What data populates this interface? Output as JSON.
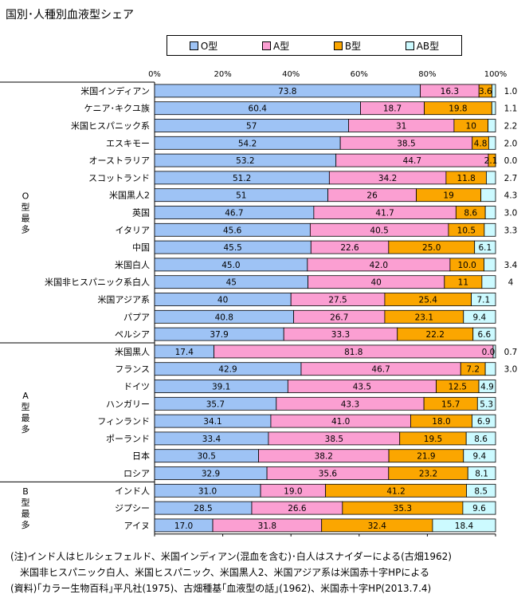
{
  "title": "国別･人種別血液型シェア",
  "notes": [
    "(注)インド人はヒルシェフェルド、米国インディアン(混血を含む)･白人はスナイダーによる(古畑1962)",
    "　米国非ヒスパニック白人、米国ヒスパニック、米国黒人2、米国アジア系は米国赤十字HPによる",
    "(資料)｢カラー生物百科｣平凡社(1975)、古畑種基｢血液型の話｣(1962)、米国赤十字HP(2013.7.4)"
  ],
  "colors": {
    "O": "#9ec3f5",
    "A": "#fb9fd2",
    "B": "#fba600",
    "AB": "#ccfaff"
  },
  "chart_data": {
    "type": "bar",
    "orientation": "horizontal",
    "stacked": true,
    "xlim": [
      0,
      100
    ],
    "xticks": [
      "0%",
      "20%",
      "40%",
      "60%",
      "80%",
      "100%"
    ],
    "legend": {
      "position": "top",
      "entries": [
        "O型",
        "A型",
        "B型",
        "AB型"
      ]
    },
    "groups": [
      {
        "label": "O型最多",
        "start": 0,
        "end": 14
      },
      {
        "label": "A型最多",
        "start": 15,
        "end": 22
      },
      {
        "label": "B型最多",
        "start": 23,
        "end": 25
      }
    ],
    "categories": [
      "米国インディアン",
      "ケニア･キクユ族",
      "米国ヒスパニック系",
      "エスキモー",
      "オーストラリア",
      "スコットランド",
      "米国黒人2",
      "英国",
      "イタリア",
      "中国",
      "米国白人",
      "米国非ヒスパニック系白人",
      "米国アジア系",
      "パプア",
      "ペルシア",
      "米国黒人",
      "フランス",
      "ドイツ",
      "ハンガリー",
      "フィンランド",
      "ポーランド",
      "日本",
      "ロシア",
      "インド人",
      "ジプシー",
      "アイヌ"
    ],
    "series": [
      {
        "name": "O型",
        "labels": [
          "73.8",
          "60.4",
          "57",
          "54.2",
          "53.2",
          "51.2",
          "51",
          "46.7",
          "45.6",
          "45.5",
          "45.0",
          "45",
          "40",
          "40.8",
          "37.9",
          "17.4",
          "42.9",
          "39.1",
          "35.7",
          "34.1",
          "33.4",
          "30.5",
          "32.9",
          "31.0",
          "28.5",
          "17.0"
        ]
      },
      {
        "name": "A型",
        "labels": [
          "16.3",
          "18.7",
          "31",
          "38.5",
          "44.7",
          "34.2",
          "26",
          "41.7",
          "40.5",
          "22.6",
          "42.0",
          "40",
          "27.5",
          "26.7",
          "33.3",
          "81.8",
          "46.7",
          "43.5",
          "43.3",
          "41.0",
          "38.5",
          "38.2",
          "35.6",
          "19.0",
          "26.6",
          "31.8"
        ]
      },
      {
        "name": "B型",
        "labels": [
          "3.6",
          "19.8",
          "10",
          "4.8",
          "2.1",
          "11.8",
          "19",
          "8.6",
          "10.5",
          "25.0",
          "10.0",
          "11",
          "25.4",
          "23.1",
          "22.2",
          "0.0",
          "7.2",
          "12.5",
          "15.7",
          "18.0",
          "19.5",
          "21.9",
          "23.2",
          "41.2",
          "35.3",
          "32.4"
        ]
      },
      {
        "name": "AB型",
        "labels": [
          "1.0",
          "1.1",
          "2.2",
          "2.0",
          "0.0",
          "2.7",
          "4.3",
          "3.0",
          "3.3",
          "6.1",
          "3.4",
          "4",
          "7.1",
          "9.4",
          "6.6",
          "0.7",
          "3.0",
          "4.9",
          "5.3",
          "6.9",
          "8.6",
          "9.4",
          "8.1",
          "8.5",
          "9.6",
          "18.4"
        ]
      }
    ]
  }
}
